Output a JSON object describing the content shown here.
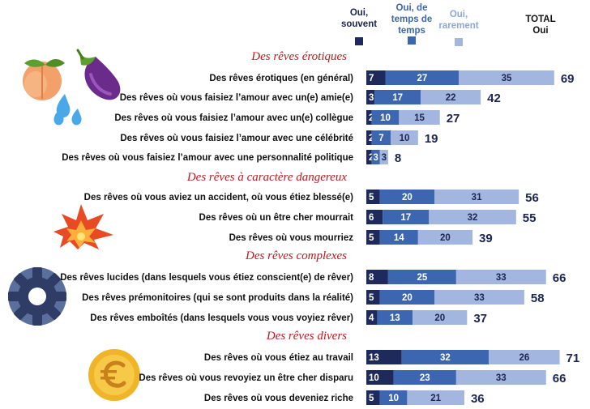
{
  "chart_data": {
    "type": "bar",
    "stacked": true,
    "orientation": "horizontal",
    "legend": {
      "placement": "top-right",
      "items": [
        {
          "key": "souvent",
          "label_lines": [
            "Oui,",
            "souvent"
          ],
          "color": "#1f2a5c"
        },
        {
          "key": "temps",
          "label_lines": [
            "Oui, de",
            "temps de",
            "temps"
          ],
          "color": "#3c67b0"
        },
        {
          "key": "rarement",
          "label_lines": [
            "Oui,",
            "rarement"
          ],
          "color": "#a3b6df"
        }
      ],
      "total_label_lines": [
        "TOTAL",
        "Oui"
      ]
    },
    "colors": {
      "souvent": "#1f2a5c",
      "temps": "#3c67b0",
      "rarement": "#a3b6df",
      "section": "#c0171d",
      "total": "#1c2453"
    },
    "sections": [
      {
        "title": "Des rêves érotiques",
        "icon": "peach-eggplant-droplets-icon",
        "rows": [
          {
            "label": "Des rêves érotiques (en général)",
            "values": [
              7,
              27,
              35
            ],
            "total": 69
          },
          {
            "label": "Des rêves où vous faisiez l’amour avec un(e) amie(e)",
            "values": [
              3,
              17,
              22
            ],
            "total": 42
          },
          {
            "label": "Des rêves où vous faisiez l’amour avec un(e) collègue",
            "values": [
              2,
              10,
              15
            ],
            "total": 27
          },
          {
            "label": "Des rêves où vous faisiez l’amour avec une célébrité",
            "values": [
              2,
              7,
              10
            ],
            "total": 19
          },
          {
            "label": "Des rêves où vous faisiez l’amour avec une personnalité politique",
            "values": [
              2,
              3,
              3
            ],
            "total": 8
          }
        ]
      },
      {
        "title": "Des rêves à caractère dangereux",
        "icon": "explosion-icon",
        "rows": [
          {
            "label": "Des rêves où vous aviez un accident, où vous étiez blessé(e)",
            "values": [
              5,
              20,
              31
            ],
            "total": 56
          },
          {
            "label": "Des rêves où un être cher mourrait",
            "values": [
              6,
              17,
              32
            ],
            "total": 55
          },
          {
            "label": "Des rêves où vous mourriez",
            "values": [
              5,
              14,
              20
            ],
            "total": 39
          }
        ]
      },
      {
        "title": "Des rêves complexes",
        "icon": "gear-icon",
        "rows": [
          {
            "label": "Des rêves lucides (dans lesquels vous étiez conscient(e) de rêver)",
            "values": [
              8,
              25,
              33
            ],
            "total": 66
          },
          {
            "label": "Des rêves prémonitoires (qui se sont produits dans la réalité)",
            "values": [
              5,
              20,
              33
            ],
            "total": 58
          },
          {
            "label": "Des rêves emboîtés (dans lesquels vous vous voyiez rêver)",
            "values": [
              4,
              13,
              20
            ],
            "total": 37
          }
        ]
      },
      {
        "title": "Des rêves divers",
        "icon": "euro-coin-icon",
        "rows": [
          {
            "label": "Des rêves où vous étiez au travail",
            "values": [
              13,
              32,
              26
            ],
            "total": 71
          },
          {
            "label": "Des rêves où vous revoyiez un être cher disparu",
            "values": [
              10,
              23,
              33
            ],
            "total": 66
          },
          {
            "label": "Des rêves où vous deveniez riche",
            "values": [
              5,
              10,
              21
            ],
            "total": 36
          }
        ]
      }
    ]
  }
}
